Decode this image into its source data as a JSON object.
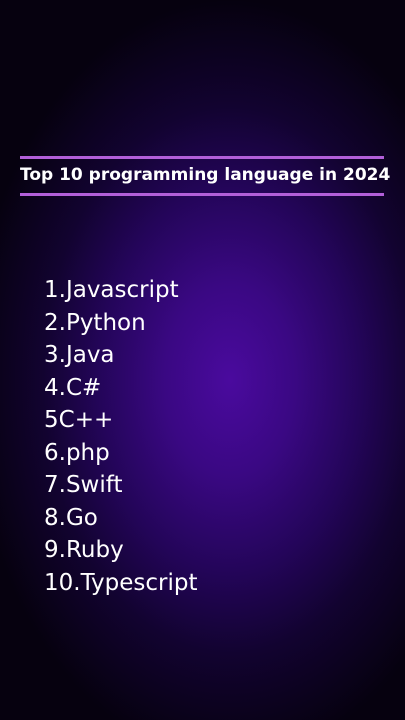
{
  "title": "Top 10 programming language in 2024",
  "languages": [
    "1.Javascript",
    "2.Python",
    "3.Java",
    "4.C#",
    "5C++",
    "6.php",
    "7.Swift",
    "8.Go",
    "9.Ruby",
    "10.Typescript"
  ],
  "colors": {
    "rule": "#b25fd9",
    "text": "#ffffff",
    "glow": "#4a0a9e"
  }
}
